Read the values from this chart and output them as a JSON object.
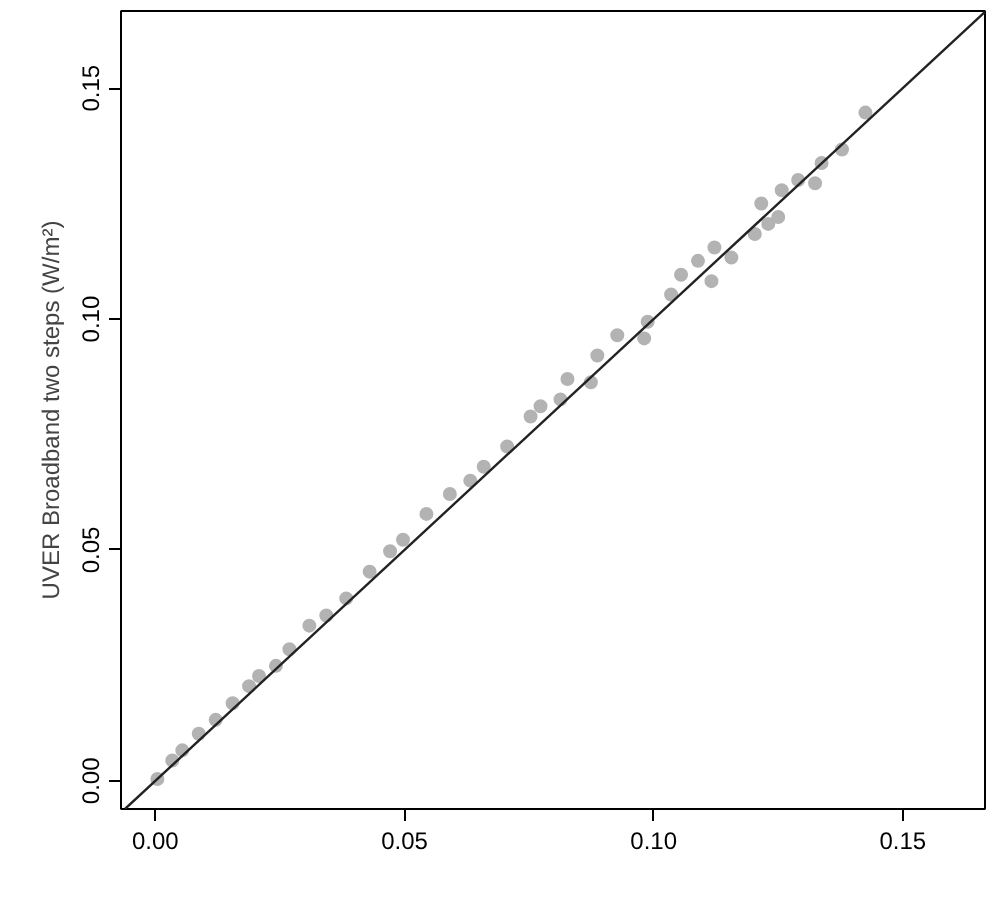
{
  "chart_data": {
    "type": "scatter",
    "ylabel": "UVER Broadband two steps (W/m²)",
    "xlim": [
      -0.0069,
      0.1665
    ],
    "ylim": [
      -0.0061,
      0.1667
    ],
    "xticks": [
      {
        "value": 0,
        "label": "0.00"
      },
      0.05,
      {
        "value": 0.1,
        "label": "0.10"
      },
      0.15
    ],
    "yticks": [
      {
        "value": 0,
        "label": "0.00"
      },
      0.05,
      {
        "value": 0.1,
        "label": "0.10"
      },
      0.15
    ],
    "grid": false,
    "marker": "circle",
    "series": [
      {
        "color": "#b3b3b3",
        "x": [
          0.0004,
          0.0034,
          0.0054,
          0.0087,
          0.0121,
          0.0155,
          0.0188,
          0.0208,
          0.0242,
          0.0269,
          0.0309,
          0.0343,
          0.0383,
          0.043,
          0.0471,
          0.0497,
          0.0544,
          0.0591,
          0.0632,
          0.0659,
          0.0706,
          0.0753,
          0.0773,
          0.0813,
          0.0827,
          0.0874,
          0.0887,
          0.0927,
          0.0981,
          0.0988,
          0.1035,
          0.1055,
          0.1089,
          0.1122,
          0.1116,
          0.1156,
          0.1203,
          0.1216,
          0.123,
          0.1257,
          0.125,
          0.129,
          0.1324,
          0.1337,
          0.1378,
          0.1425
        ],
        "values": [
          0.0004,
          0.0044,
          0.0066,
          0.0102,
          0.0132,
          0.0168,
          0.0205,
          0.0227,
          0.0249,
          0.0285,
          0.0336,
          0.0358,
          0.0395,
          0.0453,
          0.0497,
          0.0522,
          0.0578,
          0.0621,
          0.065,
          0.068,
          0.0724,
          0.0789,
          0.0811,
          0.0826,
          0.087,
          0.0863,
          0.0921,
          0.0965,
          0.0958,
          0.0994,
          0.1053,
          0.1096,
          0.1126,
          0.1155,
          0.1082,
          0.1133,
          0.1184,
          0.125,
          0.1206,
          0.1279,
          0.1221,
          0.1301,
          0.1294,
          0.1338,
          0.1367,
          0.1447
        ]
      },
      {
        "type": "line",
        "color": "#222222",
        "marker": "none",
        "line_style": "solid",
        "x": [
          -0.0061,
          0.1665
        ],
        "values": [
          -0.0061,
          0.1665
        ]
      }
    ]
  }
}
